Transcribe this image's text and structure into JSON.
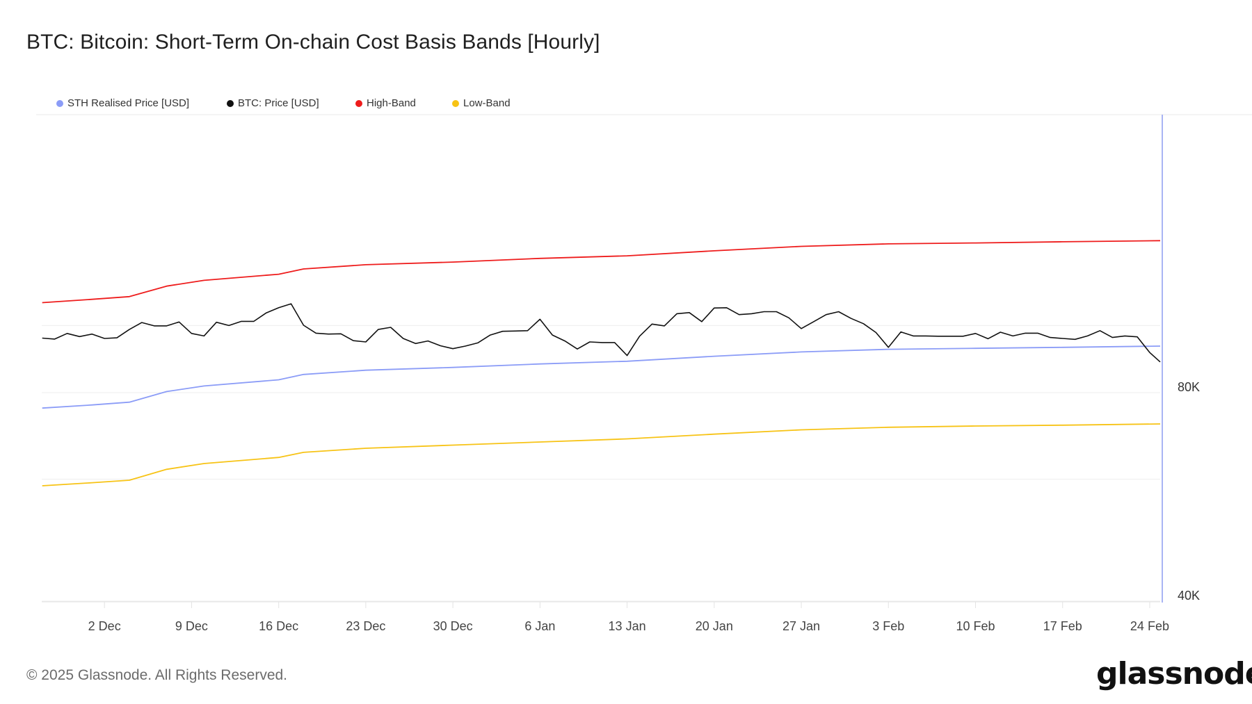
{
  "chart_data": {
    "type": "line",
    "title": "BTC: Bitcoin: Short-Term On-chain Cost Basis Bands [Hourly]",
    "xlabel": "",
    "ylabel": "",
    "y_scale": "log",
    "ylim": [
      40000,
      200000
    ],
    "y_ticks": [
      {
        "value": 40000,
        "label": "40K"
      },
      {
        "value": 80000,
        "label": "80K"
      }
    ],
    "y_gridlines": [
      40000,
      60000,
      80000,
      100000
    ],
    "grid": true,
    "legend_position": "top-left",
    "xlim": [
      "2024-11-27",
      "2025-02-25"
    ],
    "x_ticks": [
      {
        "date": "2024-12-02",
        "label": "2 Dec"
      },
      {
        "date": "2024-12-09",
        "label": "9 Dec"
      },
      {
        "date": "2024-12-16",
        "label": "16 Dec"
      },
      {
        "date": "2024-12-23",
        "label": "23 Dec"
      },
      {
        "date": "2024-12-30",
        "label": "30 Dec"
      },
      {
        "date": "2025-01-06",
        "label": "6 Jan"
      },
      {
        "date": "2025-01-13",
        "label": "13 Jan"
      },
      {
        "date": "2025-01-20",
        "label": "20 Jan"
      },
      {
        "date": "2025-01-27",
        "label": "27 Jan"
      },
      {
        "date": "2025-02-03",
        "label": "3 Feb"
      },
      {
        "date": "2025-02-10",
        "label": "10 Feb"
      },
      {
        "date": "2025-02-17",
        "label": "17 Feb"
      },
      {
        "date": "2025-02-24",
        "label": "24 Feb"
      }
    ],
    "band_dates": [
      "2024-11-27",
      "2024-12-01",
      "2024-12-04",
      "2024-12-07",
      "2024-12-10",
      "2024-12-16",
      "2024-12-18",
      "2024-12-23",
      "2024-12-30",
      "2025-01-06",
      "2025-01-13",
      "2025-01-20",
      "2025-01-27",
      "2025-02-03",
      "2025-02-10",
      "2025-02-17",
      "2025-02-25"
    ],
    "price_start": "2024-11-27",
    "series": [
      {
        "name": "STH Realised Price [USD]",
        "color": "#8b9cf7",
        "x_key": "band_dates",
        "values": [
          76000,
          76800,
          77500,
          80300,
          81800,
          83500,
          85000,
          86200,
          87000,
          88000,
          88800,
          90300,
          91600,
          92400,
          92700,
          93000,
          93400
        ]
      },
      {
        "name": "BTC: Price [USD]",
        "color": "#111111",
        "x_key": "daily_from_price_start",
        "values": [
          95900,
          95600,
          97400,
          96400,
          97200,
          95800,
          96000,
          98700,
          101000,
          99900,
          99900,
          101200,
          97400,
          96600,
          101100,
          100000,
          101400,
          101400,
          104300,
          106100,
          107500,
          100100,
          97500,
          97200,
          97300,
          95100,
          94700,
          98700,
          99400,
          95800,
          94200,
          95000,
          93500,
          92600,
          93400,
          94400,
          96900,
          98100,
          98200,
          98300,
          102100,
          96900,
          95000,
          92500,
          94700,
          94500,
          94500,
          90500,
          96500,
          100500,
          99900,
          104000,
          104400,
          101300,
          106000,
          106100,
          103700,
          104000,
          104700,
          104700,
          102600,
          99000,
          101300,
          103700,
          104700,
          102400,
          100600,
          97700,
          93000,
          97900,
          96600,
          96600,
          96500,
          96500,
          96500,
          97400,
          95700,
          97800,
          96600,
          97500,
          97500,
          96100,
          95800,
          95500,
          96600,
          98300,
          96100,
          96600,
          96300,
          91400,
          88600
        ]
      },
      {
        "name": "High-Band",
        "color": "#ee1c1c",
        "x_key": "band_dates",
        "values": [
          107900,
          109100,
          110100,
          114000,
          116200,
          118600,
          120700,
          122400,
          123500,
          125000,
          126100,
          128200,
          130100,
          131200,
          131600,
          132100,
          132600
        ]
      },
      {
        "name": "Low-Band",
        "color": "#f7c315",
        "x_key": "band_dates",
        "values": [
          58700,
          59300,
          59800,
          62000,
          63200,
          64500,
          65600,
          66500,
          67200,
          67900,
          68600,
          69700,
          70700,
          71300,
          71600,
          71800,
          72100
        ]
      }
    ]
  },
  "footer": {
    "copyright": "© 2025 Glassnode. All Rights Reserved.",
    "logo": "glassnode"
  }
}
